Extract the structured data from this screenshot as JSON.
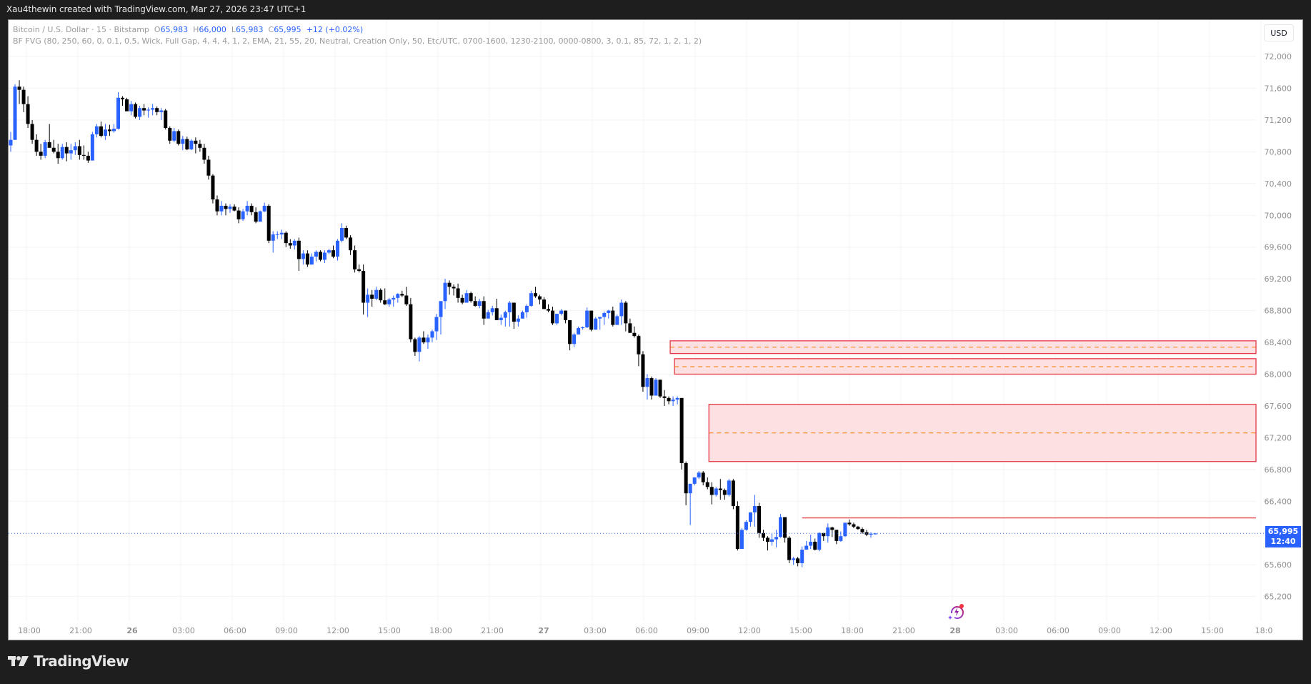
{
  "caption": "Xau4thewin created with TradingView.com, Mar 27, 2026 23:47 UTC+1",
  "legend": {
    "symbol": "Bitcoin / U.S. Dollar · 15 · Bitstamp",
    "o_label": "O",
    "o": "65,983",
    "h_label": "H",
    "h": "66,000",
    "l_label": "L",
    "l": "65,983",
    "c_label": "C",
    "c": "65,995",
    "change": "+12 (+0.02%)",
    "indicator": "BF FVG (80, 250, 60, 0, 0.1, 0.5, Wick, Full Gap, 4, 4, 4, 1, 2, EMA, 21, 55, 20, Neutral, Creation Only, 50, Etc/UTC, 0700-1600, 1230-2100, 0000-0800, 3, 0.1, 85, 72, 1, 2, 1, 2)"
  },
  "currency_button": "USD",
  "price_tag": {
    "price": "65,995",
    "countdown": "12:40",
    "value": 65995
  },
  "footer": {
    "brand": "TradingView"
  },
  "colors": {
    "up": "#2962ff",
    "down": "#000000",
    "fvg_fill": "#fde0e2",
    "fvg_border": "#e53945",
    "fvg_mid": "#f57c00",
    "last_price": "#2962ff",
    "axis_text": "#8e8e8e"
  },
  "chart_data": {
    "type": "candlestick",
    "title": "Bitcoin / U.S. Dollar · 15 · Bitstamp",
    "interval": "15m",
    "y_ticks": [
      72000,
      71600,
      71200,
      70800,
      70400,
      70000,
      69600,
      69200,
      68800,
      68400,
      68000,
      67600,
      67200,
      66800,
      66400,
      65600,
      65200
    ],
    "y_tick_labels": [
      "72,000",
      "71,600",
      "71,200",
      "70,800",
      "70,400",
      "70,000",
      "69,600",
      "69,200",
      "68,800",
      "68,400",
      "68,000",
      "67,600",
      "67,200",
      "66,800",
      "66,400",
      "65,600",
      "65,200"
    ],
    "x_ticks": [
      "18:00",
      "21:00",
      "26",
      "03:00",
      "06:00",
      "09:00",
      "12:00",
      "15:00",
      "18:00",
      "21:00",
      "27",
      "03:00",
      "06:00",
      "09:00",
      "12:00",
      "15:00",
      "18:00",
      "21:00",
      "28",
      "03:00",
      "06:00",
      "09:00",
      "12:00",
      "15:00",
      "18:0"
    ],
    "ylim": [
      65000,
      72300
    ],
    "last_price": 65995,
    "fvg_zones": [
      {
        "top": 68420,
        "bottom": 68260,
        "mid": 68340,
        "start_index": 154
      },
      {
        "top": 68195,
        "bottom": 68000,
        "mid": 68095,
        "start_index": 155
      },
      {
        "top": 67620,
        "bottom": 66900,
        "mid": 67260,
        "start_index": 163
      }
    ],
    "level_lines": [
      {
        "price": 66190,
        "start_index": 184
      }
    ],
    "candles_ohlc": [
      [
        70880,
        71050,
        70800,
        70950
      ],
      [
        70950,
        71650,
        70950,
        71620
      ],
      [
        71620,
        71700,
        71400,
        71580
      ],
      [
        71580,
        71620,
        71300,
        71400
      ],
      [
        71400,
        71500,
        71100,
        71150
      ],
      [
        71150,
        71200,
        70900,
        70950
      ],
      [
        70950,
        71020,
        70750,
        70800
      ],
      [
        70800,
        70900,
        70700,
        70750
      ],
      [
        70750,
        70950,
        70720,
        70920
      ],
      [
        70920,
        71150,
        70900,
        70850
      ],
      [
        70850,
        70950,
        70780,
        70800
      ],
      [
        70800,
        70900,
        70650,
        70720
      ],
      [
        70720,
        70900,
        70700,
        70860
      ],
      [
        70860,
        70920,
        70680,
        70780
      ],
      [
        70780,
        70900,
        70700,
        70820
      ],
      [
        70820,
        70920,
        70760,
        70870
      ],
      [
        70870,
        70950,
        70700,
        70760
      ],
      [
        70760,
        70880,
        70700,
        70750
      ],
      [
        70750,
        70800,
        70660,
        70690
      ],
      [
        70690,
        71050,
        70690,
        71020
      ],
      [
        71020,
        71150,
        70980,
        71120
      ],
      [
        71120,
        71180,
        70980,
        71000
      ],
      [
        71000,
        71150,
        70950,
        71080
      ],
      [
        71080,
        71140,
        71000,
        71060
      ],
      [
        71060,
        71150,
        71040,
        71090
      ],
      [
        71090,
        71550,
        71080,
        71480
      ],
      [
        71480,
        71500,
        71380,
        71460
      ],
      [
        71460,
        71480,
        71320,
        71310
      ],
      [
        71310,
        71440,
        71260,
        71400
      ],
      [
        71400,
        71420,
        71220,
        71240
      ],
      [
        71240,
        71380,
        71200,
        71350
      ],
      [
        71350,
        71400,
        71260,
        71320
      ],
      [
        71320,
        71360,
        71230,
        71330
      ],
      [
        71330,
        71400,
        71260,
        71350
      ],
      [
        71350,
        71370,
        71260,
        71300
      ],
      [
        71300,
        71350,
        71200,
        71320
      ],
      [
        71320,
        71340,
        71080,
        71100
      ],
      [
        71100,
        71120,
        70900,
        70940
      ],
      [
        70940,
        71100,
        70920,
        71060
      ],
      [
        71060,
        71080,
        70880,
        70900
      ],
      [
        70900,
        71000,
        70820,
        70960
      ],
      [
        70960,
        70990,
        70820,
        70830
      ],
      [
        70830,
        70960,
        70820,
        70940
      ],
      [
        70940,
        70980,
        70780,
        70900
      ],
      [
        70900,
        70950,
        70800,
        70850
      ],
      [
        70850,
        70900,
        70650,
        70700
      ],
      [
        70700,
        70750,
        70450,
        70500
      ],
      [
        70500,
        70520,
        70150,
        70200
      ],
      [
        70200,
        70250,
        70000,
        70050
      ],
      [
        70050,
        70180,
        70000,
        70120
      ],
      [
        70120,
        70150,
        70000,
        70080
      ],
      [
        70080,
        70140,
        70030,
        70110
      ],
      [
        70110,
        70140,
        70050,
        70060
      ],
      [
        70060,
        70100,
        69900,
        69950
      ],
      [
        69950,
        70080,
        69930,
        70050
      ],
      [
        70050,
        70180,
        70000,
        70120
      ],
      [
        70120,
        70150,
        70000,
        70040
      ],
      [
        70040,
        70100,
        69900,
        69920
      ],
      [
        69920,
        70060,
        69920,
        70050
      ],
      [
        70050,
        70160,
        70040,
        70120
      ],
      [
        70120,
        70140,
        69650,
        69680
      ],
      [
        69680,
        69800,
        69530,
        69760
      ],
      [
        69760,
        69800,
        69700,
        69760
      ],
      [
        69760,
        69820,
        69700,
        69780
      ],
      [
        69780,
        69800,
        69600,
        69650
      ],
      [
        69650,
        69700,
        69580,
        69620
      ],
      [
        69620,
        69700,
        69570,
        69680
      ],
      [
        69680,
        69720,
        69300,
        69450
      ],
      [
        69450,
        69560,
        69380,
        69520
      ],
      [
        69520,
        69560,
        69350,
        69380
      ],
      [
        69380,
        69520,
        69380,
        69480
      ],
      [
        69480,
        69560,
        69420,
        69540
      ],
      [
        69540,
        69560,
        69420,
        69440
      ],
      [
        69440,
        69560,
        69400,
        69530
      ],
      [
        69530,
        69580,
        69510,
        69560
      ],
      [
        69560,
        69620,
        69460,
        69480
      ],
      [
        69480,
        69700,
        69430,
        69680
      ],
      [
        69680,
        69900,
        69660,
        69840
      ],
      [
        69840,
        69870,
        69700,
        69720
      ],
      [
        69720,
        69750,
        69500,
        69560
      ],
      [
        69560,
        69620,
        69280,
        69320
      ],
      [
        69320,
        69380,
        69280,
        69300
      ],
      [
        69300,
        69380,
        68750,
        68900
      ],
      [
        68900,
        69080,
        68720,
        69000
      ],
      [
        69000,
        69060,
        68850,
        68950
      ],
      [
        68950,
        69100,
        68930,
        69060
      ],
      [
        69060,
        69080,
        68900,
        68930
      ],
      [
        68930,
        69080,
        68870,
        68880
      ],
      [
        68880,
        68960,
        68850,
        68940
      ],
      [
        68940,
        68990,
        68850,
        68960
      ],
      [
        68960,
        69020,
        68900,
        69010
      ],
      [
        69010,
        69050,
        68970,
        68990
      ],
      [
        68990,
        69100,
        68860,
        68880
      ],
      [
        68880,
        68960,
        68400,
        68440
      ],
      [
        68440,
        68460,
        68230,
        68280
      ],
      [
        68280,
        68480,
        68160,
        68460
      ],
      [
        68460,
        68540,
        68380,
        68400
      ],
      [
        68400,
        68500,
        68320,
        68460
      ],
      [
        68460,
        68560,
        68400,
        68540
      ],
      [
        68540,
        68760,
        68430,
        68720
      ],
      [
        68720,
        68840,
        68500,
        68920
      ],
      [
        68920,
        69200,
        68820,
        69150
      ],
      [
        69150,
        69180,
        69000,
        69100
      ],
      [
        69100,
        69130,
        68990,
        69080
      ],
      [
        69080,
        69140,
        68900,
        68960
      ],
      [
        68960,
        69000,
        68880,
        68900
      ],
      [
        68900,
        69060,
        68920,
        69020
      ],
      [
        69020,
        69040,
        68900,
        68920
      ],
      [
        68920,
        68980,
        68850,
        68860
      ],
      [
        68860,
        68950,
        68830,
        68920
      ],
      [
        68920,
        68980,
        68620,
        68700
      ],
      [
        68700,
        68810,
        68720,
        68780
      ],
      [
        68780,
        68860,
        68740,
        68830
      ],
      [
        68830,
        68950,
        68780,
        68680
      ],
      [
        68680,
        68750,
        68620,
        68710
      ],
      [
        68710,
        68800,
        68600,
        68780
      ],
      [
        68780,
        68920,
        68600,
        68900
      ],
      [
        68900,
        68900,
        68570,
        68660
      ],
      [
        68660,
        68740,
        68600,
        68700
      ],
      [
        68700,
        68800,
        68700,
        68780
      ],
      [
        68780,
        68880,
        68710,
        68860
      ],
      [
        68860,
        69050,
        68850,
        69020
      ],
      [
        69020,
        69100,
        68960,
        68980
      ],
      [
        68980,
        69000,
        68880,
        68940
      ],
      [
        68940,
        68970,
        68820,
        68820
      ],
      [
        68820,
        68880,
        68780,
        68800
      ],
      [
        68800,
        68850,
        68620,
        68640
      ],
      [
        68640,
        68760,
        68620,
        68760
      ],
      [
        68760,
        68820,
        68740,
        68800
      ],
      [
        68800,
        68800,
        68640,
        68680
      ],
      [
        68680,
        68680,
        68300,
        68380
      ],
      [
        68380,
        68520,
        68340,
        68500
      ],
      [
        68500,
        68600,
        68500,
        68580
      ],
      [
        68580,
        68600,
        68560,
        68590
      ],
      [
        68590,
        68840,
        68580,
        68800
      ],
      [
        68800,
        68800,
        68540,
        68560
      ],
      [
        68560,
        68720,
        68560,
        68700
      ],
      [
        68700,
        68720,
        68560,
        68720
      ],
      [
        68720,
        68790,
        68620,
        68770
      ],
      [
        68770,
        68810,
        68700,
        68800
      ],
      [
        68800,
        68850,
        68600,
        68620
      ],
      [
        68620,
        68750,
        68640,
        68730
      ],
      [
        68730,
        68940,
        68620,
        68900
      ],
      [
        68900,
        68920,
        68540,
        68640
      ],
      [
        68640,
        68700,
        68520,
        68520
      ],
      [
        68520,
        68600,
        68460,
        68480
      ],
      [
        68480,
        68500,
        68100,
        68250
      ],
      [
        68250,
        68290,
        67780,
        67840
      ],
      [
        67840,
        68000,
        67680,
        67950
      ],
      [
        67950,
        67970,
        67680,
        67730
      ],
      [
        67730,
        67950,
        67750,
        67930
      ],
      [
        67930,
        67930,
        67700,
        67720
      ],
      [
        67720,
        67800,
        67600,
        67700
      ],
      [
        67700,
        67720,
        67620,
        67660
      ],
      [
        67660,
        67720,
        67600,
        67680
      ],
      [
        67680,
        67720,
        67620,
        67700
      ],
      [
        67700,
        67700,
        66800,
        66880
      ],
      [
        66880,
        66900,
        66350,
        66500
      ],
      [
        66500,
        66620,
        66100,
        66620
      ],
      [
        66620,
        66700,
        66600,
        66700
      ],
      [
        66700,
        66780,
        66680,
        66760
      ],
      [
        66760,
        66780,
        66600,
        66640
      ],
      [
        66640,
        66700,
        66550,
        66580
      ],
      [
        66580,
        66640,
        66360,
        66480
      ],
      [
        66480,
        66580,
        66460,
        66560
      ],
      [
        66560,
        66680,
        66420,
        66540
      ],
      [
        66540,
        66560,
        66420,
        66480
      ],
      [
        66480,
        66680,
        66460,
        66660
      ],
      [
        66660,
        66680,
        66300,
        66340
      ],
      [
        66340,
        66400,
        65780,
        65800
      ],
      [
        65800,
        66060,
        65800,
        66040
      ],
      [
        66040,
        66160,
        66030,
        66140
      ],
      [
        66140,
        66260,
        66080,
        66260
      ],
      [
        66260,
        66480,
        66080,
        66340
      ],
      [
        66340,
        66380,
        65940,
        66000
      ],
      [
        66000,
        66040,
        65900,
        65940
      ],
      [
        65940,
        65960,
        65780,
        65890
      ],
      [
        65890,
        65990,
        65840,
        65920
      ],
      [
        65920,
        66040,
        65820,
        65950
      ],
      [
        65950,
        66240,
        65940,
        66200
      ],
      [
        66200,
        66200,
        65880,
        65940
      ],
      [
        65940,
        65960,
        65620,
        65660
      ],
      [
        65660,
        65700,
        65600,
        65680
      ],
      [
        65680,
        65700,
        65580,
        65620
      ],
      [
        65620,
        65830,
        65570,
        65790
      ],
      [
        65790,
        65900,
        65800,
        65840
      ],
      [
        65840,
        65980,
        65800,
        65890
      ],
      [
        65890,
        65930,
        65780,
        65790
      ],
      [
        65790,
        66010,
        65770,
        66000
      ],
      [
        66000,
        66000,
        65900,
        65960
      ],
      [
        65960,
        66120,
        65880,
        66070
      ],
      [
        66070,
        66080,
        65950,
        66040
      ],
      [
        66040,
        66040,
        65860,
        65900
      ],
      [
        65900,
        66020,
        65890,
        65960
      ],
      [
        65960,
        66120,
        65950,
        66130
      ],
      [
        66130,
        66170,
        66090,
        66110
      ],
      [
        66110,
        66130,
        66060,
        66080
      ],
      [
        66080,
        66090,
        66040,
        66050
      ],
      [
        66050,
        66070,
        65990,
        66010
      ],
      [
        66010,
        66040,
        65960,
        65980
      ],
      [
        65980,
        66010,
        65940,
        65990
      ],
      [
        65983,
        66000,
        65983,
        65995
      ]
    ]
  }
}
